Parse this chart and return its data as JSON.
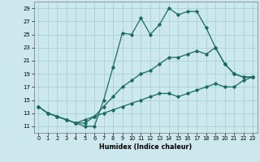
{
  "xlabel": "Humidex (Indice chaleur)",
  "bg_color": "#cce8ec",
  "line_color": "#1a6b60",
  "grid_color": "#9dcdd4",
  "xlim": [
    -0.5,
    23.5
  ],
  "ylim": [
    10.0,
    30.0
  ],
  "yticks": [
    11,
    13,
    15,
    17,
    19,
    21,
    23,
    25,
    27,
    29
  ],
  "xticks": [
    0,
    1,
    2,
    3,
    4,
    5,
    6,
    7,
    8,
    9,
    10,
    11,
    12,
    13,
    14,
    15,
    16,
    17,
    18,
    19,
    20,
    21,
    22,
    23
  ],
  "series": [
    {
      "x": [
        0,
        1,
        2,
        3,
        4,
        5,
        6,
        7,
        8,
        9,
        10,
        11,
        12,
        13,
        14,
        15,
        16,
        17,
        18,
        19,
        20,
        21,
        22,
        23
      ],
      "y": [
        14,
        13,
        12.5,
        12,
        11.5,
        11,
        11,
        15,
        20,
        25.2,
        25,
        27.5,
        25,
        26.5,
        29,
        28,
        28.5,
        28.5,
        26,
        23,
        20.5,
        19,
        18.5,
        18.5
      ]
    },
    {
      "x": [
        0,
        1,
        2,
        3,
        4,
        5,
        6,
        7,
        8,
        9,
        10,
        11,
        12,
        13,
        14,
        15,
        16,
        17,
        18,
        19,
        20,
        21,
        22,
        23
      ],
      "y": [
        14,
        13,
        12.5,
        12,
        11.5,
        11.5,
        12.5,
        14,
        15.5,
        17,
        18,
        19,
        19.5,
        20.5,
        21.5,
        21.5,
        22,
        22.5,
        22,
        23,
        20.5,
        19,
        18.5,
        18.5
      ]
    },
    {
      "x": [
        0,
        1,
        2,
        3,
        4,
        5,
        6,
        7,
        8,
        9,
        10,
        11,
        12,
        13,
        14,
        15,
        16,
        17,
        18,
        19,
        20,
        21,
        22,
        23
      ],
      "y": [
        14,
        13,
        12.5,
        12,
        11.5,
        12,
        12.5,
        13,
        13.5,
        14,
        14.5,
        15,
        15.5,
        16,
        16,
        15.5,
        16,
        16.5,
        17,
        17.5,
        17,
        17,
        18,
        18.5
      ]
    }
  ]
}
